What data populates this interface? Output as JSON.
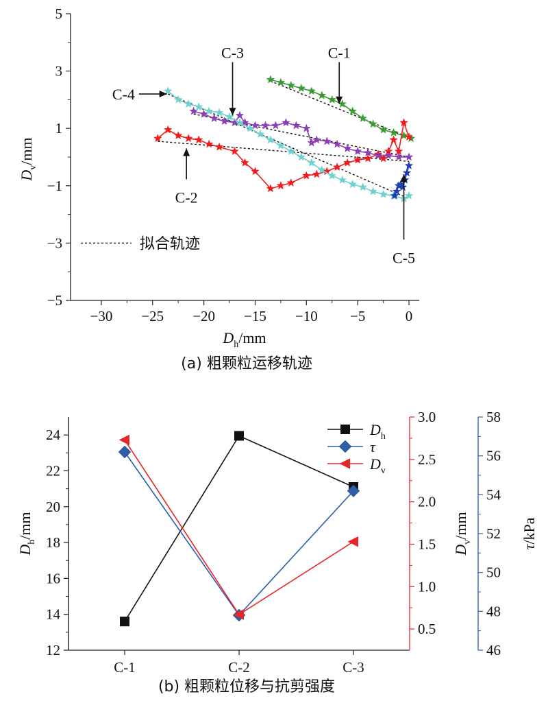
{
  "chart_data": [
    {
      "type": "scatter",
      "caption": "(a) 粗颗粒运移轨迹",
      "xlabel": {
        "main": "D",
        "sub": "h",
        "unit": "/mm"
      },
      "ylabel": {
        "main": "D",
        "sub": "v",
        "unit": "/mm"
      },
      "xlim": [
        -33,
        1
      ],
      "ylim": [
        -5,
        5
      ],
      "xticks": [
        -30,
        -25,
        -20,
        -15,
        -10,
        -5,
        0
      ],
      "yticks": [
        -5,
        -3,
        -1,
        1,
        3,
        5
      ],
      "xtick_labels": [
        "−30",
        "−25",
        "−20",
        "−15",
        "−10",
        "−5",
        "0"
      ],
      "ytick_labels": [
        "−5",
        "−3",
        "−1",
        "1",
        "3",
        "5"
      ],
      "grid": false,
      "legend": {
        "position": "bottom-left",
        "label": "拟合轨迹"
      },
      "series": [
        {
          "name": "C-1",
          "color": "#3a9a35",
          "marker": "star",
          "x": [
            -13.5,
            -12.5,
            -11.5,
            -10.5,
            -9.5,
            -8.5,
            -7.5,
            -6.5,
            -5.5,
            -4.5,
            -3.5,
            -2.5,
            -1.5,
            -0.5,
            0.2
          ],
          "y": [
            2.7,
            2.6,
            2.5,
            2.4,
            2.3,
            2.15,
            2.0,
            1.85,
            1.6,
            1.35,
            1.15,
            0.95,
            0.85,
            0.75,
            0.65
          ],
          "fit": [
            [
              -13.5,
              2.65
            ],
            [
              0.2,
              0.65
            ]
          ]
        },
        {
          "name": "C-2",
          "color": "#ee1c1c",
          "marker": "star",
          "x": [
            -24.5,
            -23.5,
            -22.5,
            -21.5,
            -20.5,
            -19.5,
            -18.5,
            -17,
            -16,
            -15,
            -13.5,
            -12.5,
            -11.5,
            -10,
            -9,
            -8,
            -7,
            -6,
            -5,
            -4,
            -3,
            -2.5,
            -2,
            -1.5,
            -1,
            -0.5,
            0
          ],
          "y": [
            0.65,
            0.95,
            0.75,
            0.65,
            0.6,
            0.45,
            0.35,
            0.2,
            -0.2,
            -0.5,
            -1.1,
            -1.0,
            -0.9,
            -0.65,
            -0.6,
            -0.5,
            -0.35,
            -0.2,
            -0.1,
            -0.05,
            0.1,
            -0.05,
            0.2,
            0.6,
            0.2,
            1.2,
            0.7
          ],
          "fit": [
            [
              -24.5,
              0.55
            ],
            [
              0,
              -0.15
            ]
          ]
        },
        {
          "name": "C-3",
          "color": "#8b3fb3",
          "marker": "star",
          "x": [
            -21,
            -20,
            -19,
            -18,
            -17,
            -16.5,
            -16,
            -15,
            -14,
            -13,
            -12,
            -11,
            -10,
            -9.5,
            -9,
            -8,
            -7,
            -6,
            -5,
            -4,
            -3,
            -2,
            -1,
            0
          ],
          "y": [
            1.6,
            1.5,
            1.35,
            1.25,
            1.2,
            1.45,
            1.2,
            1.1,
            1.1,
            1.1,
            1.2,
            1.1,
            1.0,
            0.5,
            0.6,
            0.55,
            0.45,
            0.3,
            0.2,
            0.15,
            0.05,
            0.05,
            0.0,
            0.0
          ],
          "fit": [
            [
              -21,
              1.5
            ],
            [
              0,
              0.0
            ]
          ]
        },
        {
          "name": "C-4",
          "color": "#6fd0d0",
          "marker": "star",
          "x": [
            -23.5,
            -22.5,
            -21.5,
            -20.5,
            -19.5,
            -18.5,
            -17.5,
            -16.5,
            -15.5,
            -14.5,
            -13.5,
            -12.5,
            -11.5,
            -10.5,
            -9.5,
            -8.5,
            -7.5,
            -6.5,
            -5.5,
            -4.5,
            -3.5,
            -2.5,
            -1.5,
            -0.5,
            0
          ],
          "y": [
            2.3,
            2.0,
            1.85,
            1.75,
            1.6,
            1.55,
            1.4,
            1.2,
            1.0,
            0.8,
            0.6,
            0.4,
            0.2,
            0.0,
            -0.2,
            -0.45,
            -0.65,
            -0.8,
            -0.95,
            -1.05,
            -1.2,
            -1.3,
            -1.35,
            -1.45,
            -1.35
          ],
          "fit": [
            [
              -23.5,
              2.2
            ],
            [
              0,
              -1.45
            ]
          ]
        },
        {
          "name": "C-5",
          "color": "#1f3fb5",
          "marker": "star",
          "x": [
            -1.4,
            -1.2,
            -1.0,
            -0.8,
            -0.6,
            -0.4,
            -0.2,
            0.0
          ],
          "y": [
            -1.35,
            -1.2,
            -1.0,
            -0.95,
            -1.05,
            -0.8,
            -0.55,
            -0.3
          ],
          "fit": null
        }
      ],
      "annotations": [
        {
          "label": "C-1",
          "tip": [
            -6.8,
            1.85
          ],
          "from": "top",
          "text_at": [
            -6.8,
            3.6
          ]
        },
        {
          "label": "C-2",
          "tip": [
            -21.7,
            0.3
          ],
          "from": "bottom",
          "text_at": [
            -21.7,
            -1.4
          ]
        },
        {
          "label": "C-3",
          "tip": [
            -17.2,
            1.45
          ],
          "from": "top",
          "text_at": [
            -17.2,
            3.6
          ]
        },
        {
          "label": "C-4",
          "tip": [
            -23.6,
            2.2
          ],
          "from": "left",
          "text_at": [
            -29,
            2.2
          ]
        },
        {
          "label": "C-5",
          "tip": [
            -0.5,
            -0.6
          ],
          "from": "bottom",
          "text_at": [
            -0.5,
            -3.5
          ]
        }
      ]
    },
    {
      "type": "line",
      "caption": "(b) 粗颗粒位移与抗剪强度",
      "categories": [
        "C-1",
        "C-2",
        "C-3"
      ],
      "axes": {
        "left": {
          "label": {
            "main": "D",
            "sub": "h",
            "unit": "/mm"
          },
          "range": [
            12,
            25
          ],
          "ticks": [
            12,
            14,
            16,
            18,
            20,
            22,
            24
          ],
          "color": "#111111"
        },
        "right1": {
          "label": {
            "main": "D",
            "sub": "v",
            "unit": "/mm"
          },
          "range": [
            0.25,
            3.0
          ],
          "ticks": [
            0.5,
            1.0,
            1.5,
            2.0,
            2.5,
            3.0
          ],
          "tick_labels": [
            "0.5",
            "1.0",
            "1.5",
            "2.0",
            "2.5",
            "3.0"
          ],
          "color": "#e8262a"
        },
        "right2": {
          "label": {
            "main": "τ",
            "sub": "",
            "unit": "/kPa"
          },
          "range": [
            46,
            58
          ],
          "ticks": [
            46,
            48,
            50,
            52,
            54,
            56,
            58
          ],
          "color": "#2e5ea8"
        }
      },
      "legend": {
        "position": "top-right"
      },
      "series": [
        {
          "name": {
            "main": "D",
            "sub": "h"
          },
          "axis": "left",
          "color": "#111111",
          "marker": "square",
          "values": [
            13.6,
            23.95,
            21.1
          ]
        },
        {
          "name": {
            "main": "τ",
            "sub": ""
          },
          "axis": "right2",
          "color": "#2e5ea8",
          "marker": "diamond",
          "values": [
            56.2,
            47.8,
            54.2
          ]
        },
        {
          "name": {
            "main": "D",
            "sub": "v"
          },
          "axis": "right1",
          "color": "#e8262a",
          "marker": "triangle-left",
          "values": [
            2.73,
            0.67,
            1.53
          ]
        }
      ],
      "grid": false
    }
  ]
}
